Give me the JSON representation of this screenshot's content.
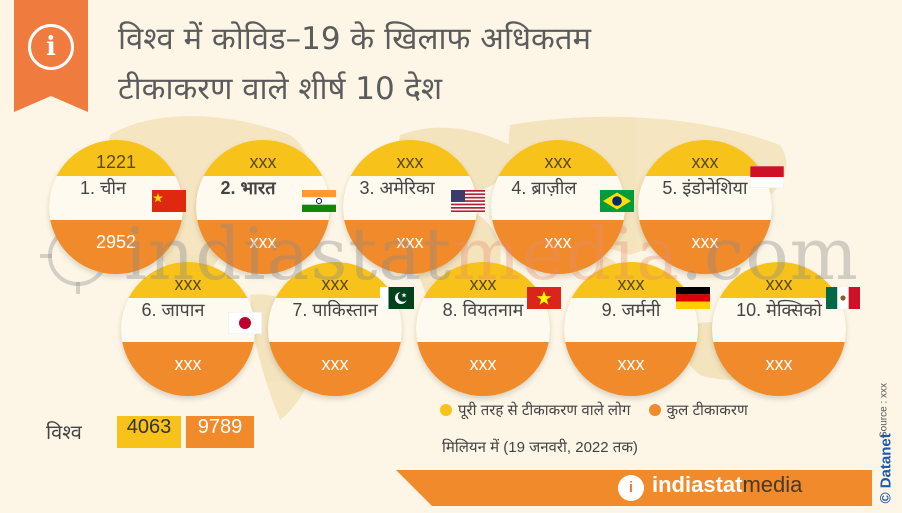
{
  "title_line1": "विश्व में कोविड–19 के खिलाफ अधिकतम",
  "title_line2": "टीकाकरण वाले शीर्ष 10 देश",
  "info_icon": "i",
  "watermark": {
    "text": "indiastat",
    "accent": "media",
    "suffix": ".com"
  },
  "world": {
    "label": "विश्व",
    "fully_vaccinated": "4063",
    "total_vaccinations": "9789"
  },
  "legend": {
    "fully_label": "पूरी तरह से टीकाकरण वाले लोग",
    "total_label": "कुल टीकाकरण",
    "unit_note": "मिलियन में (19 जनवरी, 2022 तक)"
  },
  "footer": {
    "logo": "i",
    "brand_main": "indiastat",
    "brand_accent": "media"
  },
  "source_text": "Source : xxx",
  "copyright": "© Datanet",
  "colors": {
    "fully": "#f7c21a",
    "total": "#f08a2b",
    "header_accent": "#ef7b3e"
  },
  "chart_data": {
    "type": "table",
    "title": "विश्व में कोविड–19 के खिलाफ अधिकतम टीकाकरण वाले शीर्ष 10 देश",
    "columns": [
      "country",
      "fully_vaccinated",
      "total_vaccinations"
    ],
    "rows": [
      {
        "rank_label": "1. चीन",
        "fully": "1221",
        "total": "2952",
        "flag": "china-flag-icon"
      },
      {
        "rank_label": "2. भारत",
        "fully": "xxx",
        "total": "xxx",
        "flag": "india-flag-icon"
      },
      {
        "rank_label": "3. अमेरिका",
        "fully": "xxx",
        "total": "xxx",
        "flag": "usa-flag-icon"
      },
      {
        "rank_label": "4. ब्राज़ील",
        "fully": "xxx",
        "total": "xxx",
        "flag": "brazil-flag-icon"
      },
      {
        "rank_label": "5. इंडोनेशिया",
        "fully": "xxx",
        "total": "xxx",
        "flag": "indonesia-flag-icon"
      },
      {
        "rank_label": "6. जापान",
        "fully": "xxx",
        "total": "xxx",
        "flag": "japan-flag-icon"
      },
      {
        "rank_label": "7. पाकिस्तान",
        "fully": "xxx",
        "total": "xxx",
        "flag": "pakistan-flag-icon"
      },
      {
        "rank_label": "8. वियतनाम",
        "fully": "xxx",
        "total": "xxx",
        "flag": "vietnam-flag-icon"
      },
      {
        "rank_label": "9. जर्मनी",
        "fully": "xxx",
        "total": "xxx",
        "flag": "germany-flag-icon"
      },
      {
        "rank_label": "10. मेक्सिको",
        "fully": "xxx",
        "total": "xxx",
        "flag": "mexico-flag-icon"
      }
    ]
  }
}
